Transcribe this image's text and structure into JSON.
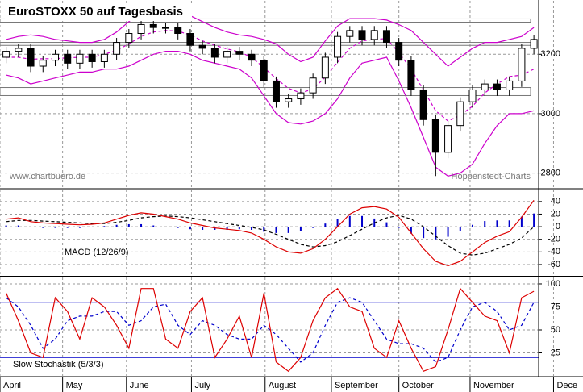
{
  "chart_data": [
    {
      "type": "candlestick",
      "title": "EuroSTOXX 50 auf Tagesbasis",
      "annotations": [
        "www.chartbuero.de",
        "Hoppenstedt-Charts"
      ],
      "x": [
        0,
        1,
        2,
        3,
        4,
        5,
        6,
        7,
        8,
        9,
        10,
        11,
        12,
        13,
        14,
        15,
        16,
        17,
        18,
        19,
        20,
        21,
        22,
        23,
        24,
        25,
        26,
        27,
        28,
        29,
        30,
        31,
        32,
        33,
        34,
        35,
        36,
        37,
        38,
        39,
        40,
        41,
        42,
        43
      ],
      "open": [
        3190,
        3210,
        3220,
        3160,
        3180,
        3200,
        3170,
        3200,
        3175,
        3200,
        3240,
        3270,
        3300,
        3290,
        3290,
        3270,
        3230,
        3220,
        3190,
        3210,
        3200,
        3180,
        3110,
        3040,
        3050,
        3070,
        3120,
        3190,
        3260,
        3280,
        3250,
        3280,
        3240,
        3180,
        3080,
        2980,
        2870,
        2960,
        3040,
        3080,
        3100,
        3080,
        3110,
        3220
      ],
      "high": [
        3225,
        3235,
        3235,
        3195,
        3215,
        3215,
        3215,
        3215,
        3215,
        3255,
        3285,
        3315,
        3315,
        3305,
        3305,
        3285,
        3245,
        3235,
        3225,
        3225,
        3215,
        3195,
        3125,
        3065,
        3085,
        3135,
        3205,
        3275,
        3295,
        3295,
        3295,
        3295,
        3255,
        3195,
        3095,
        2995,
        2975,
        3055,
        3095,
        3115,
        3115,
        3125,
        3235,
        3265
      ],
      "low": [
        3170,
        3190,
        3140,
        3140,
        3160,
        3150,
        3150,
        3155,
        3155,
        3180,
        3220,
        3250,
        3270,
        3270,
        3250,
        3210,
        3200,
        3170,
        3170,
        3180,
        3160,
        3090,
        3020,
        3020,
        3030,
        3050,
        3100,
        3170,
        3240,
        3230,
        3230,
        3220,
        3160,
        3060,
        2960,
        2790,
        2850,
        2940,
        3020,
        3060,
        3060,
        3060,
        3090,
        3200
      ],
      "close": [
        3210,
        3220,
        3160,
        3180,
        3200,
        3170,
        3200,
        3175,
        3200,
        3240,
        3270,
        3300,
        3290,
        3290,
        3270,
        3230,
        3220,
        3190,
        3210,
        3200,
        3180,
        3110,
        3040,
        3050,
        3070,
        3120,
        3190,
        3260,
        3280,
        3250,
        3280,
        3240,
        3180,
        3080,
        2980,
        2870,
        2960,
        3040,
        3080,
        3100,
        3080,
        3110,
        3220,
        3250
      ],
      "series": [
        {
          "color": "#cc00cc",
          "dashed": false,
          "values": [
            3250,
            3260,
            3265,
            3260,
            3250,
            3245,
            3240,
            3240,
            3250,
            3275,
            3310,
            3340,
            3350,
            3350,
            3345,
            3330,
            3310,
            3290,
            3275,
            3265,
            3260,
            3250,
            3235,
            3200,
            3175,
            3190,
            3245,
            3295,
            3320,
            3320,
            3320,
            3315,
            3300,
            3280,
            3240,
            3200,
            3160,
            3190,
            3220,
            3240,
            3240,
            3250,
            3260,
            3290
          ]
        },
        {
          "color": "#cc00cc",
          "dashed": true,
          "values": [
            3190,
            3190,
            3183,
            3185,
            3185,
            3188,
            3190,
            3190,
            3200,
            3213,
            3235,
            3260,
            3275,
            3280,
            3278,
            3265,
            3245,
            3230,
            3218,
            3208,
            3190,
            3155,
            3118,
            3085,
            3070,
            3083,
            3123,
            3173,
            3220,
            3245,
            3250,
            3253,
            3205,
            3150,
            3080,
            3010,
            2975,
            2995,
            3025,
            3070,
            3100,
            3125,
            3130,
            3150
          ]
        },
        {
          "color": "#cc00cc",
          "dashed": false,
          "values": [
            3130,
            3120,
            3100,
            3110,
            3120,
            3130,
            3140,
            3140,
            3150,
            3150,
            3160,
            3180,
            3200,
            3210,
            3210,
            3200,
            3180,
            3170,
            3160,
            3150,
            3120,
            3060,
            3000,
            2970,
            2965,
            2975,
            3000,
            3050,
            3120,
            3170,
            3180,
            3190,
            3110,
            3020,
            2920,
            2820,
            2790,
            2800,
            2830,
            2900,
            2960,
            3000,
            3000,
            3010
          ]
        }
      ],
      "zones": [
        [
          3308,
          3319
        ],
        [
          3230,
          3240
        ],
        [
          3061,
          3088
        ]
      ],
      "xlim": [
        -0.5,
        47
      ],
      "ylim": [
        2750,
        3380
      ],
      "yticks": [
        2800,
        3000,
        3200
      ],
      "grid": true
    },
    {
      "type": "combo",
      "title": "MACD (12/26/9)",
      "series": [
        {
          "type": "bar",
          "color": "#0000cc",
          "values": [
            2,
            2,
            -1,
            -2,
            -2,
            -2,
            -2,
            -1,
            1,
            3,
            4,
            4,
            2,
            -1,
            -2,
            -4,
            -5,
            -5,
            -5,
            -4,
            -5,
            -8,
            -10,
            -10,
            -7,
            -2,
            5,
            12,
            17,
            17,
            13,
            7,
            -2,
            -11,
            -18,
            -20,
            -16,
            -7,
            3,
            9,
            10,
            10,
            16,
            21
          ]
        },
        {
          "type": "line",
          "color": "#000000",
          "dashed": true,
          "values": [
            8,
            10,
            10,
            9,
            8,
            7,
            6,
            5,
            5,
            7,
            10,
            14,
            16,
            17,
            16,
            14,
            11,
            8,
            5,
            2,
            -1,
            -5,
            -12,
            -20,
            -28,
            -32,
            -30,
            -24,
            -14,
            -4,
            6,
            14,
            18,
            12,
            0,
            -15,
            -30,
            -42,
            -45,
            -42,
            -35,
            -28,
            -18,
            0
          ]
        },
        {
          "type": "line",
          "color": "#dd0000",
          "dashed": false,
          "values": [
            12,
            14,
            8,
            6,
            5,
            4,
            3,
            4,
            6,
            12,
            18,
            22,
            20,
            16,
            12,
            6,
            2,
            -2,
            -4,
            -6,
            -10,
            -20,
            -32,
            -40,
            -42,
            -35,
            -20,
            0,
            20,
            30,
            32,
            28,
            15,
            -10,
            -35,
            -55,
            -62,
            -55,
            -40,
            -25,
            -15,
            -8,
            15,
            42
          ]
        }
      ],
      "xlim": [
        -0.5,
        47
      ],
      "ylim": [
        -78,
        59
      ],
      "yticks": [
        -60,
        -40,
        -20,
        0,
        20,
        40
      ],
      "grid": true
    },
    {
      "type": "combo",
      "title": "Slow Stochastik (5/3/3)",
      "series": [
        {
          "type": "line",
          "color": "#0000cc",
          "dashed": true,
          "values": [
            85,
            75,
            55,
            30,
            40,
            60,
            65,
            65,
            70,
            70,
            55,
            60,
            75,
            78,
            55,
            45,
            60,
            55,
            45,
            40,
            40,
            55,
            45,
            30,
            15,
            25,
            55,
            80,
            85,
            80,
            60,
            40,
            35,
            35,
            30,
            15,
            20,
            50,
            75,
            80,
            70,
            50,
            55,
            80
          ]
        },
        {
          "type": "line",
          "color": "#dd0000",
          "dashed": false,
          "values": [
            90,
            60,
            25,
            20,
            85,
            70,
            40,
            85,
            75,
            55,
            30,
            95,
            95,
            40,
            30,
            70,
            85,
            20,
            40,
            65,
            20,
            90,
            15,
            5,
            20,
            60,
            85,
            95,
            75,
            70,
            30,
            20,
            60,
            30,
            5,
            10,
            50,
            95,
            80,
            65,
            60,
            25,
            85,
            92
          ]
        }
      ],
      "hlines": [
        20,
        80
      ],
      "hline_color": "#0000cc",
      "xlim": [
        -0.5,
        47
      ],
      "ylim": [
        0,
        107
      ],
      "yticks": [
        25,
        50,
        75,
        100
      ],
      "grid": true,
      "xticks": [
        {
          "value": -0.5,
          "label": "April"
        },
        {
          "value": 4.6,
          "label": "May"
        },
        {
          "value": 9.8,
          "label": "June"
        },
        {
          "value": 15.1,
          "label": "July"
        },
        {
          "value": 21.1,
          "label": "August"
        },
        {
          "value": 26.5,
          "label": "September"
        },
        {
          "value": 32,
          "label": "October"
        },
        {
          "value": 37.8,
          "label": "November"
        },
        {
          "value": 44.6,
          "label": "Dece"
        }
      ]
    }
  ]
}
